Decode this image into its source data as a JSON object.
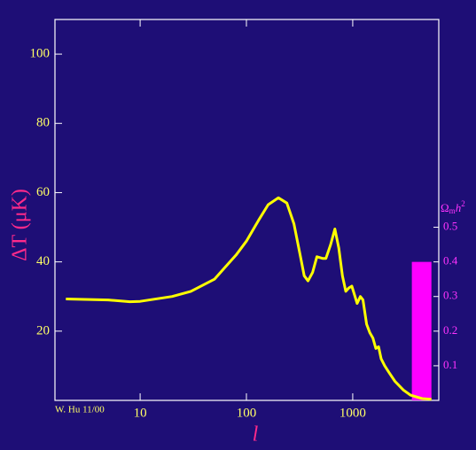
{
  "chart_data": {
    "type": "line",
    "y_label": "ΔT (μK)",
    "x_label": "l",
    "annotation": "W. Hu 11/00",
    "y2_label": [
      "Ω",
      "m",
      "h",
      "2"
    ],
    "xscale": "log",
    "xlim": [
      1.58,
      6450
    ],
    "xticks": [
      10,
      100,
      1000
    ],
    "ylim": [
      0,
      110
    ],
    "yticks": [
      20,
      40,
      60,
      80,
      100
    ],
    "y2lim": [
      0,
      1.1
    ],
    "y2ticks": [
      0.1,
      0.2,
      0.3,
      0.4,
      0.5
    ],
    "series": [
      {
        "color": "#ffff00",
        "x": [
          2,
          5,
          8,
          10,
          20,
          30,
          50,
          80,
          100,
          130,
          160,
          200,
          240,
          280,
          320,
          350,
          380,
          420,
          460,
          520,
          560,
          620,
          680,
          740,
          800,
          860,
          920,
          980,
          1050,
          1100,
          1180,
          1250,
          1350,
          1450,
          1550,
          1650,
          1750,
          1850,
          2000,
          2200,
          2500,
          3000,
          3500,
          4500,
          5500
        ],
        "values": [
          29.3,
          29,
          28.5,
          28.6,
          30,
          31.5,
          35,
          42,
          46,
          52,
          56.5,
          58.5,
          57,
          51,
          42,
          36,
          34.5,
          37,
          41.5,
          41,
          41,
          45,
          49.5,
          44,
          36,
          31.5,
          32.5,
          33,
          30,
          28,
          30,
          29,
          22,
          19.5,
          18,
          15,
          15.5,
          12,
          10,
          8,
          5.5,
          3,
          1.5,
          0.5,
          0.3
        ]
      }
    ],
    "bar": {
      "x": [
        3600,
        5500
      ],
      "value": 0.4,
      "color": "#ff00ff",
      "axis": "y2"
    }
  }
}
